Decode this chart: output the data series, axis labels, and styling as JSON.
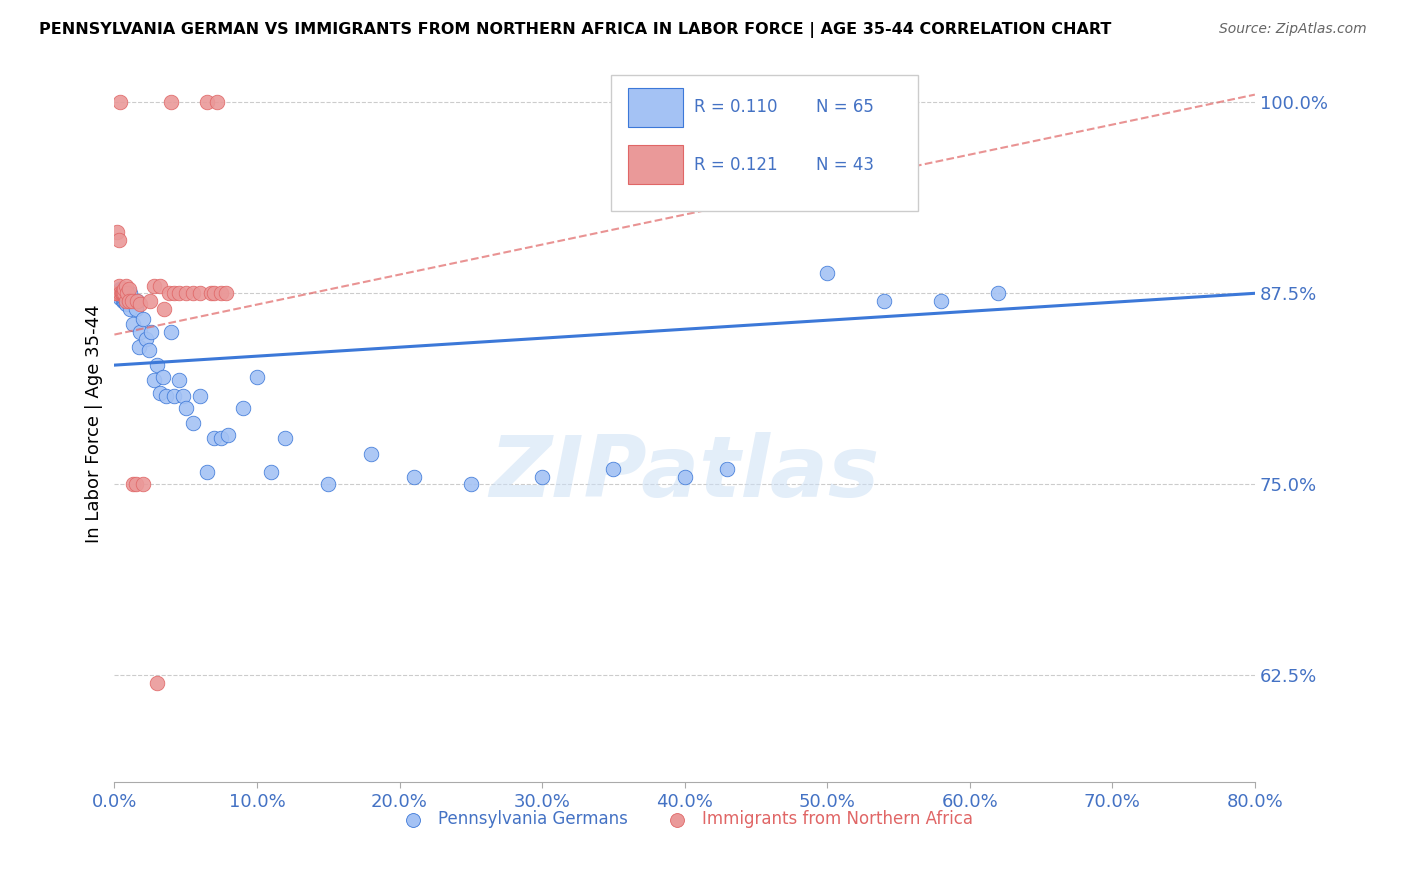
{
  "title": "PENNSYLVANIA GERMAN VS IMMIGRANTS FROM NORTHERN AFRICA IN LABOR FORCE | AGE 35-44 CORRELATION CHART",
  "source": "Source: ZipAtlas.com",
  "ylabel": "In Labor Force | Age 35-44",
  "y_tick_labels": [
    "62.5%",
    "75.0%",
    "87.5%",
    "100.0%"
  ],
  "y_tick_values": [
    0.625,
    0.75,
    0.875,
    1.0
  ],
  "x_lim": [
    0.0,
    0.8
  ],
  "y_lim": [
    0.555,
    1.025
  ],
  "blue_color": "#a4c2f4",
  "pink_color": "#ea9999",
  "blue_line_color": "#3c78d8",
  "pink_line_color": "#e06666",
  "tick_color": "#4472c4",
  "legend_blue_R": "R = 0.110",
  "legend_blue_N": "N = 65",
  "legend_pink_R": "R = 0.121",
  "legend_pink_N": "N = 43",
  "legend_label_blue": "Pennsylvania Germans",
  "legend_label_pink": "Immigrants from Northern Africa",
  "watermark": "ZIPatlas",
  "blue_x": [
    0.002,
    0.003,
    0.003,
    0.004,
    0.004,
    0.005,
    0.005,
    0.005,
    0.006,
    0.006,
    0.006,
    0.007,
    0.007,
    0.007,
    0.008,
    0.008,
    0.008,
    0.009,
    0.009,
    0.01,
    0.01,
    0.011,
    0.011,
    0.012,
    0.013,
    0.015,
    0.016,
    0.017,
    0.018,
    0.02,
    0.022,
    0.024,
    0.026,
    0.028,
    0.03,
    0.032,
    0.034,
    0.036,
    0.04,
    0.042,
    0.045,
    0.048,
    0.05,
    0.055,
    0.06,
    0.065,
    0.07,
    0.075,
    0.08,
    0.09,
    0.1,
    0.11,
    0.12,
    0.15,
    0.18,
    0.21,
    0.25,
    0.3,
    0.35,
    0.4,
    0.43,
    0.5,
    0.54,
    0.58,
    0.62
  ],
  "blue_y": [
    0.875,
    0.875,
    0.876,
    0.872,
    0.878,
    0.875,
    0.876,
    0.878,
    0.87,
    0.872,
    0.875,
    0.87,
    0.872,
    0.875,
    0.87,
    0.868,
    0.875,
    0.872,
    0.875,
    0.868,
    0.87,
    0.865,
    0.875,
    0.87,
    0.855,
    0.865,
    0.87,
    0.84,
    0.85,
    0.858,
    0.845,
    0.838,
    0.85,
    0.818,
    0.828,
    0.81,
    0.82,
    0.808,
    0.85,
    0.808,
    0.818,
    0.808,
    0.8,
    0.79,
    0.808,
    0.758,
    0.78,
    0.78,
    0.782,
    0.8,
    0.82,
    0.758,
    0.78,
    0.75,
    0.77,
    0.755,
    0.75,
    0.755,
    0.76,
    0.755,
    0.76,
    0.888,
    0.87,
    0.87,
    0.875
  ],
  "pink_x": [
    0.001,
    0.002,
    0.002,
    0.003,
    0.003,
    0.004,
    0.004,
    0.005,
    0.005,
    0.005,
    0.006,
    0.006,
    0.007,
    0.007,
    0.008,
    0.008,
    0.009,
    0.01,
    0.01,
    0.012,
    0.013,
    0.015,
    0.016,
    0.018,
    0.02,
    0.025,
    0.028,
    0.03,
    0.032,
    0.035,
    0.038,
    0.04,
    0.042,
    0.045,
    0.05,
    0.055,
    0.06,
    0.065,
    0.068,
    0.07,
    0.072,
    0.075,
    0.078
  ],
  "pink_y": [
    0.875,
    0.915,
    0.875,
    0.91,
    0.88,
    1.0,
    0.875,
    0.875,
    0.875,
    0.875,
    0.875,
    0.875,
    0.875,
    0.878,
    0.87,
    0.88,
    0.875,
    0.878,
    0.87,
    0.87,
    0.75,
    0.75,
    0.87,
    0.868,
    0.75,
    0.87,
    0.88,
    0.62,
    0.88,
    0.865,
    0.875,
    1.0,
    0.875,
    0.875,
    0.875,
    0.875,
    0.875,
    1.0,
    0.875,
    0.875,
    1.0,
    0.875,
    0.875
  ],
  "blue_trend_x0": 0.0,
  "blue_trend_x1": 0.8,
  "blue_trend_y0": 0.828,
  "blue_trend_y1": 0.875,
  "pink_trend_x0": 0.0,
  "pink_trend_x1": 0.8,
  "pink_trend_y0": 0.848,
  "pink_trend_y1": 1.005
}
